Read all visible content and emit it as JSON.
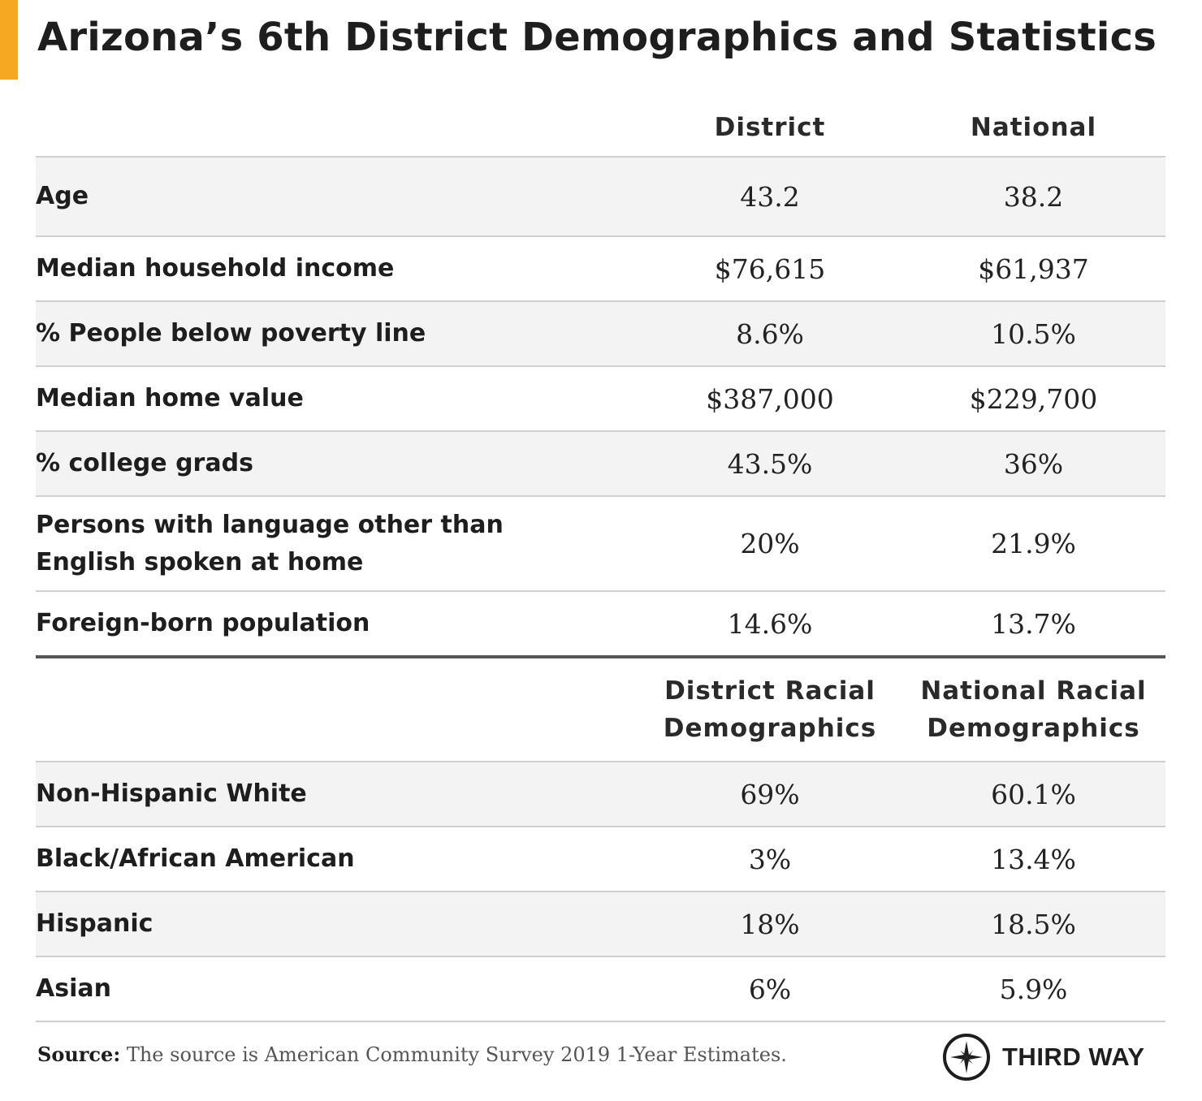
{
  "colors": {
    "accent": "#f7a823",
    "shade": "#f3f3f3",
    "rule": "#cfcfcf",
    "text": "#1e1e1e"
  },
  "title": "Arizona’s 6th District Demographics and Statistics",
  "chart_data": {
    "type": "table",
    "title": "Arizona’s 6th District Demographics and Statistics",
    "sections": [
      {
        "columns": [
          "",
          "District",
          "National"
        ],
        "rows": [
          {
            "label": "Age",
            "district": "43.2",
            "national": "38.2"
          },
          {
            "label": "Median household income",
            "district": "$76,615",
            "national": "$61,937"
          },
          {
            "label": "% People below poverty line",
            "district": "8.6%",
            "national": "10.5%"
          },
          {
            "label": "Median home value",
            "district": "$387,000",
            "national": "$229,700"
          },
          {
            "label": "% college grads",
            "district": "43.5%",
            "national": "36%"
          },
          {
            "label": "Persons with language other than English spoken at home",
            "district": "20%",
            "national": "21.9%"
          },
          {
            "label": "Foreign-born population",
            "district": "14.6%",
            "national": "13.7%"
          }
        ]
      },
      {
        "columns": [
          "",
          "District Racial Demographics",
          "National Racial Demographics"
        ],
        "rows": [
          {
            "label": "Non-Hispanic White",
            "district": "69%",
            "national": "60.1%"
          },
          {
            "label": "Black/African American",
            "district": "3%",
            "national": "13.4%"
          },
          {
            "label": "Hispanic",
            "district": "18%",
            "national": "18.5%"
          },
          {
            "label": "Asian",
            "district": "6%",
            "national": "5.9%"
          }
        ]
      }
    ]
  },
  "footer": {
    "source_label": "Source:",
    "source_text": "The source is American Community Survey 2019 1-Year Estimates.",
    "brand": "THIRD WAY",
    "brand_icon": "compass-icon"
  }
}
